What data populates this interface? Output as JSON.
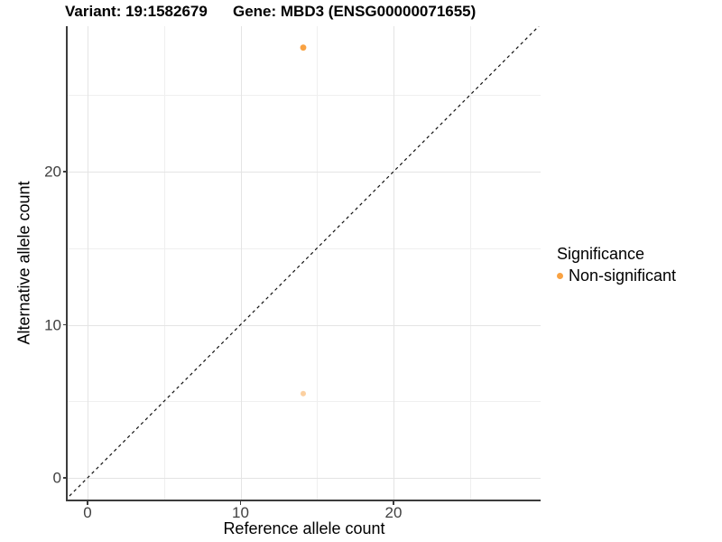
{
  "titles": {
    "left": "Variant: 19:1582679",
    "right": "Gene: MBD3 (ENSG00000071655)"
  },
  "chart_data": {
    "type": "scatter",
    "xlabel": "Reference allele count",
    "ylabel": "Alternative allele count",
    "x_ticks": [
      {
        "value": 0,
        "label": "0"
      },
      {
        "value": 10,
        "label": "10"
      },
      {
        "value": 20,
        "label": "20"
      }
    ],
    "y_ticks": [
      {
        "value": 0,
        "label": "0"
      },
      {
        "value": 10,
        "label": "10"
      },
      {
        "value": 20,
        "label": "20"
      }
    ],
    "x_major_gridlines": [
      0,
      10,
      20
    ],
    "x_minor_gridlines": [
      5,
      15,
      25
    ],
    "y_major_gridlines": [
      0,
      10,
      20
    ],
    "y_minor_gridlines": [
      5,
      15,
      25
    ],
    "xlim": [
      -1.3,
      29.6
    ],
    "ylim": [
      -1.5,
      29.5
    ],
    "grid": "on",
    "reference_line": {
      "type": "identity y=x",
      "style": "dashed",
      "color": "#000000"
    },
    "series": [
      {
        "name": "Non-significant",
        "color": "#F9A242",
        "points": [
          {
            "x": 14.1,
            "y": 28.1,
            "opacity": 1
          },
          {
            "x": 14.1,
            "y": 5.5,
            "opacity": 0.5
          }
        ]
      }
    ],
    "legend": {
      "title": "Significance",
      "position": "right",
      "items": [
        {
          "label": "Non-significant",
          "color": "#F9A242",
          "marker": "filled-circle"
        }
      ]
    }
  }
}
